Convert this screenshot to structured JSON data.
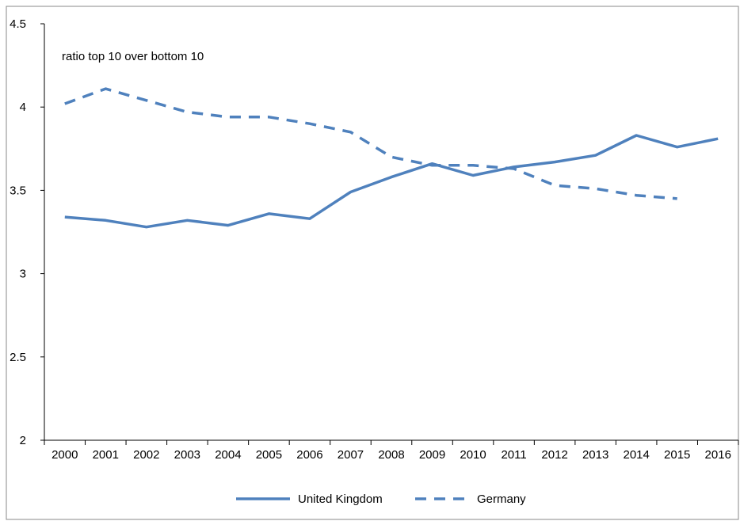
{
  "chart_data": {
    "type": "line",
    "title": "",
    "xlabel": "",
    "ylabel": "",
    "annotation": "ratio top 10 over bottom 10",
    "categories": [
      "2000",
      "2001",
      "2002",
      "2003",
      "2004",
      "2005",
      "2006",
      "2007",
      "2008",
      "2009",
      "2010",
      "2011",
      "2012",
      "2013",
      "2014",
      "2015",
      "2016"
    ],
    "ylim": [
      2,
      4.5
    ],
    "yticks": [
      "2",
      "2.5",
      "3",
      "3.5",
      "4",
      "4.5"
    ],
    "grid": false,
    "legend_position": "bottom",
    "series": [
      {
        "name": "United Kingdom",
        "style": "solid",
        "color": "#4f81bd",
        "values": [
          3.34,
          3.32,
          3.28,
          3.32,
          3.29,
          3.36,
          3.33,
          3.49,
          3.58,
          3.66,
          3.59,
          3.64,
          3.67,
          3.71,
          3.83,
          3.76,
          3.81
        ]
      },
      {
        "name": "Germany",
        "style": "dashed",
        "color": "#4f81bd",
        "values": [
          4.02,
          4.11,
          4.04,
          3.97,
          3.94,
          3.94,
          3.9,
          3.85,
          3.7,
          3.65,
          3.65,
          3.63,
          3.53,
          3.51,
          3.47,
          3.45,
          null
        ]
      }
    ]
  }
}
